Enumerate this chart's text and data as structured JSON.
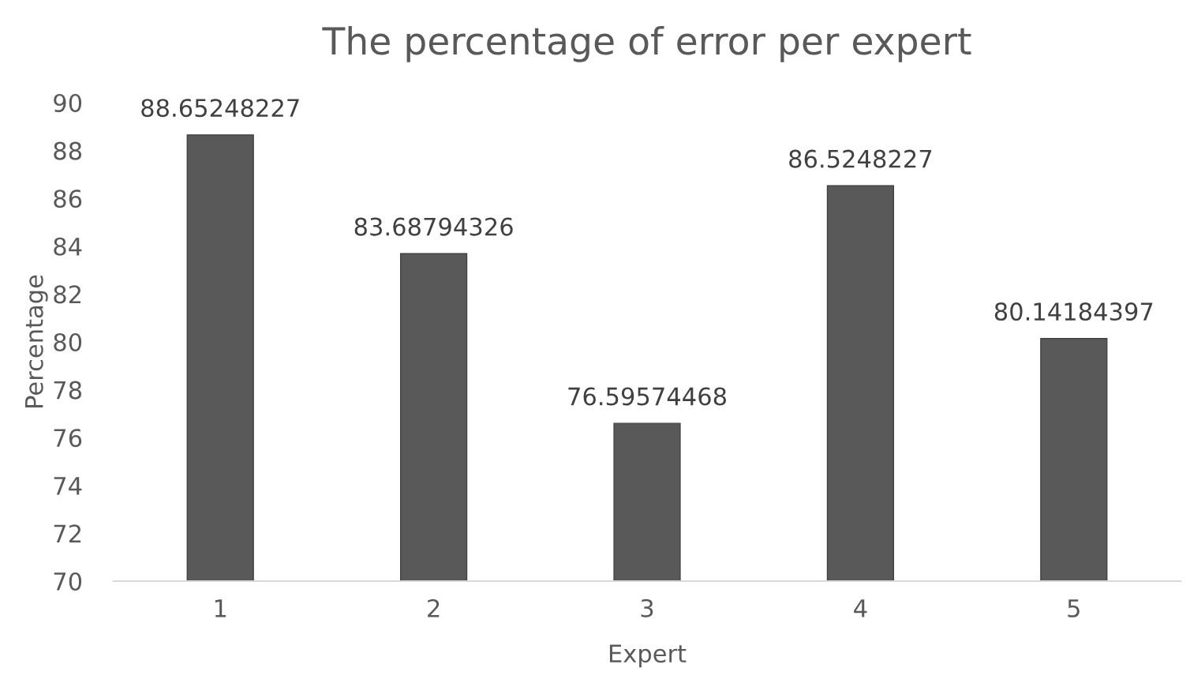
{
  "chart_data": {
    "type": "bar",
    "title": "The percentage of error per expert",
    "xlabel": "Expert",
    "ylabel": "Percentage",
    "categories": [
      "1",
      "2",
      "3",
      "4",
      "5"
    ],
    "values": [
      88.65248227,
      83.68794326,
      76.59574468,
      86.5248227,
      80.14184397
    ],
    "color": "#595959",
    "ylim": [
      70,
      90
    ],
    "yticks": [
      70,
      72,
      74,
      76,
      78,
      80,
      82,
      84,
      86,
      88,
      90
    ],
    "grid": false,
    "data_labels": true
  }
}
